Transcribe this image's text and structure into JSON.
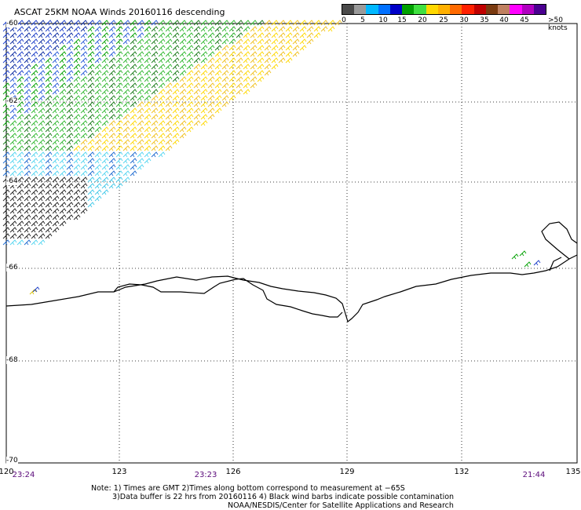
{
  "title": "ASCAT 25KM NOAA Winds 20160116 descending",
  "colorbar": {
    "colors": [
      "#4a4a4a",
      "#9a9a9a",
      "#00b8ff",
      "#0070ff",
      "#0000c8",
      "#00a000",
      "#40e040",
      "#ffd800",
      "#ffb000",
      "#ff6a00",
      "#ff2000",
      "#c00000",
      "#7a3a10",
      "#c08060",
      "#ff00ff",
      "#b000c0",
      "#4a0090"
    ],
    "labels": [
      "0",
      "5",
      "10",
      "15",
      "20",
      "25",
      "30",
      "35",
      "40",
      "45",
      ">50 knots"
    ]
  },
  "map": {
    "lat_labels": [
      "-60",
      "-62",
      "-64",
      "-66",
      "-68",
      "-70"
    ],
    "lon_labels": [
      "120",
      "123",
      "126",
      "129",
      "132",
      "135"
    ],
    "time_labels": [
      "23:24",
      "23:23",
      "21:44"
    ]
  },
  "notes": {
    "line1": "Note: 1) Times are GMT 2)Times along bottom correspond to measurement at −65S",
    "line2": "3)Data buffer is 22 hrs from 20160116 4) Black wind barbs indicate possible contamination",
    "line3": "NOAA/NESDIS/Center for Satellite Applications and Research"
  }
}
